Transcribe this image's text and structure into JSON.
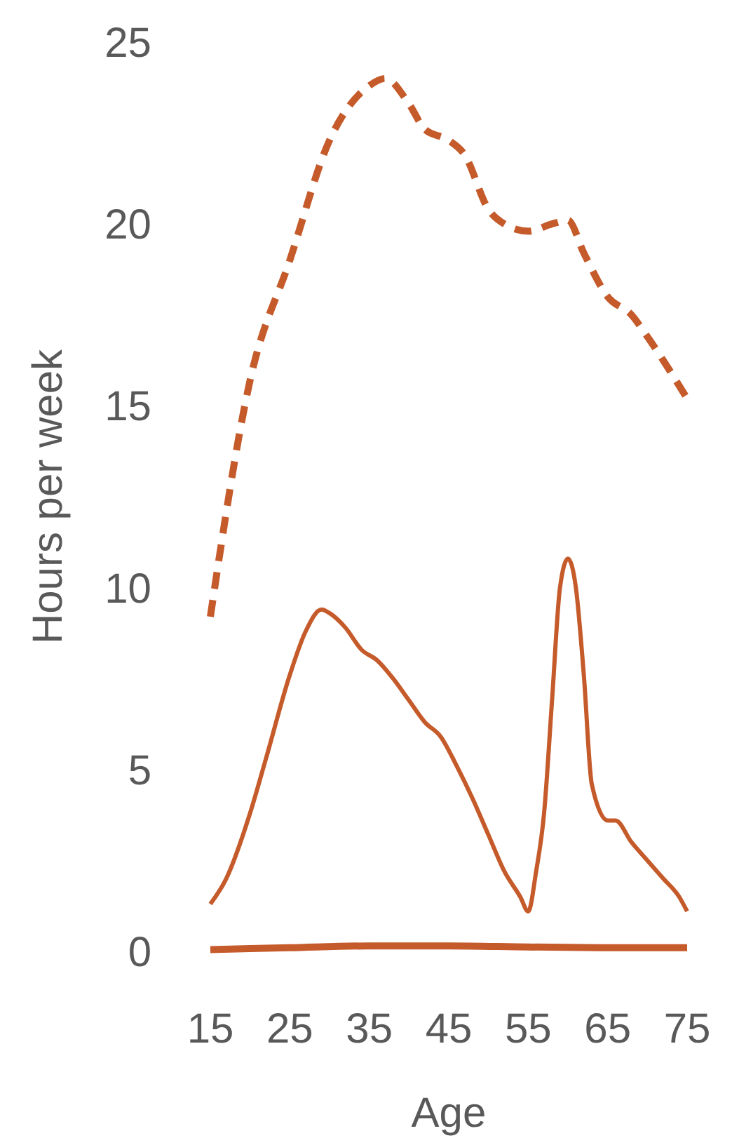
{
  "chart_data": {
    "type": "line",
    "xlabel": "Age",
    "ylabel": "Hours per week",
    "xlim": [
      15,
      75
    ],
    "xticks": [
      15,
      25,
      35,
      45,
      55,
      65,
      75
    ],
    "ylim": [
      0,
      25
    ],
    "yticks": [
      0,
      5,
      10,
      15,
      20,
      25
    ],
    "grid": false,
    "series": [
      {
        "color": "#c55a2a",
        "line_style": "dashed",
        "x": [
          15,
          20,
          25,
          30,
          35,
          37,
          40,
          42,
          45,
          47,
          50,
          52,
          55,
          58,
          60,
          62,
          65,
          68,
          70,
          75
        ],
        "values": [
          9.2,
          15.7,
          19,
          22.3,
          23.8,
          24,
          23.3,
          22.6,
          22.3,
          21.9,
          20.4,
          20,
          19.8,
          20,
          20.1,
          19.2,
          18,
          17.5,
          16.9,
          15.2
        ]
      },
      {
        "color": "#c55a2a",
        "line_style": "solid",
        "x": [
          15,
          17,
          20,
          22,
          25,
          27,
          29,
          30,
          32,
          34,
          36,
          38,
          40,
          42,
          44,
          46,
          48,
          50,
          52,
          54,
          55,
          56,
          57,
          58,
          59,
          60,
          61,
          62,
          63,
          65,
          66,
          68,
          70,
          72,
          74,
          75
        ],
        "values": [
          1.3,
          2,
          3.8,
          5.3,
          7.6,
          8.8,
          9.4,
          9.3,
          8.9,
          8.3,
          8,
          7.5,
          6.9,
          6.3,
          5.9,
          5.1,
          4.2,
          3.2,
          2.2,
          1.5,
          1.1,
          2.2,
          3.8,
          6.9,
          10,
          10.8,
          10,
          7.6,
          4.6,
          3.6,
          3.6,
          3,
          2.5,
          2,
          1.5,
          1.1
        ]
      },
      {
        "color": "#c55a2a",
        "line_style": "solid",
        "x": [
          15,
          25,
          35,
          45,
          55,
          65,
          75
        ],
        "values": [
          0.05,
          0.1,
          0.15,
          0.15,
          0.12,
          0.1,
          0.1
        ]
      }
    ]
  }
}
